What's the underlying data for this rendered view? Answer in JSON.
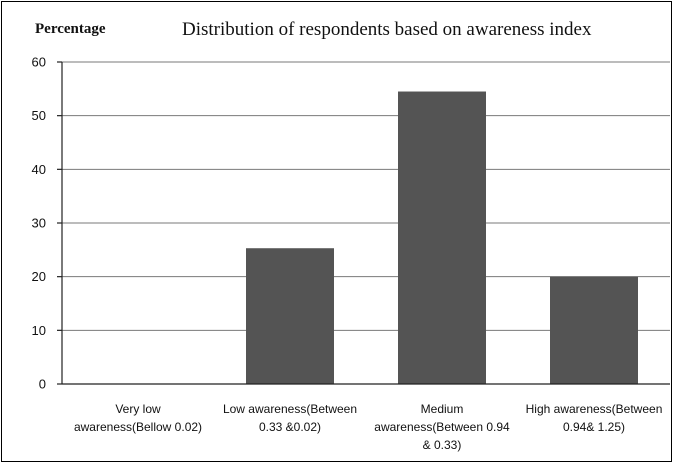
{
  "chart_data": {
    "type": "bar",
    "title": "Distribution of respondents based on awareness index",
    "ylabel": "Percentage",
    "xlabel": "",
    "categories": [
      [
        "Very low",
        "awareness(Bellow 0.02)"
      ],
      [
        "Low awareness(Between",
        "0.33 &0.02)"
      ],
      [
        "Medium",
        "awareness(Between 0.94",
        "& 0.33)"
      ],
      [
        "High awareness(Between",
        "0.94& 1.25)"
      ]
    ],
    "values": [
      0,
      25.3,
      54.5,
      20
    ],
    "ylim": [
      0,
      60
    ],
    "yticks": [
      0,
      10,
      20,
      30,
      40,
      50,
      60
    ],
    "grid": true,
    "bar_color": "#545454"
  }
}
